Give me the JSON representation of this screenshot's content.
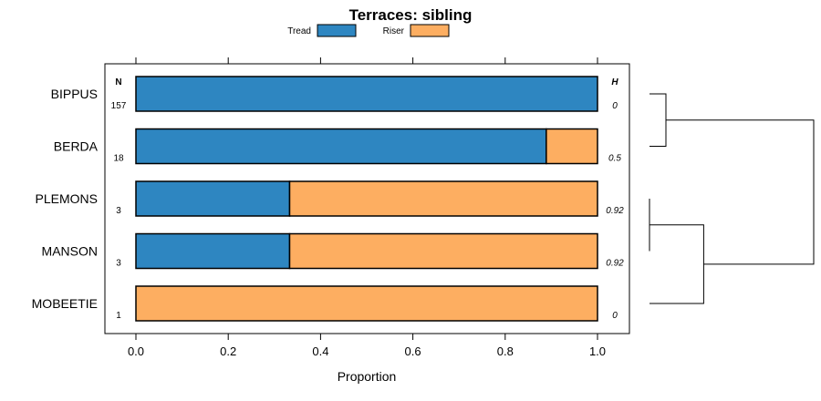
{
  "chart_data": {
    "type": "bar",
    "orientation": "horizontal",
    "stacked": true,
    "title": "Terraces: sibling",
    "xlabel": "Proportion",
    "ylabel": "",
    "xlim": [
      -0.06,
      1.06
    ],
    "xticks": [
      0.0,
      0.2,
      0.4,
      0.6,
      0.8,
      1.0
    ],
    "xtick_labels": [
      "0.0",
      "0.2",
      "0.4",
      "0.6",
      "0.8",
      "1.0"
    ],
    "legend_position": "top",
    "n_header": "N",
    "h_header": "H",
    "categories": [
      "BIPPUS",
      "BERDA",
      "PLEMONS",
      "MANSON",
      "MOBEETIE"
    ],
    "n_values": [
      "157",
      "18",
      "3",
      "3",
      "1"
    ],
    "h_values": [
      "0",
      "0.5",
      "0.92",
      "0.92",
      "0"
    ],
    "series": [
      {
        "name": "Tread",
        "color": "#2e86c1",
        "values": [
          1.0,
          0.889,
          0.333,
          0.333,
          0.0
        ]
      },
      {
        "name": "Riser",
        "color": "#fdae61",
        "values": [
          0.0,
          0.111,
          0.667,
          0.667,
          1.0
        ]
      }
    ],
    "dendrogram": {
      "leaves": [
        "BIPPUS",
        "BERDA",
        "PLEMONS",
        "MANSON",
        "MOBEETIE"
      ],
      "merges": [
        {
          "left": "BIPPUS",
          "right": "BERDA",
          "height": 0.1
        },
        {
          "left": "PLEMONS",
          "right": "MANSON",
          "height": 0.0
        },
        {
          "left": "PLEMONS+MANSON",
          "right": "MOBEETIE",
          "height": 0.33
        },
        {
          "left": "BIPPUS+BERDA",
          "right": "PLEMONS+MANSON+MOBEETIE",
          "height": 1.0
        }
      ]
    }
  }
}
